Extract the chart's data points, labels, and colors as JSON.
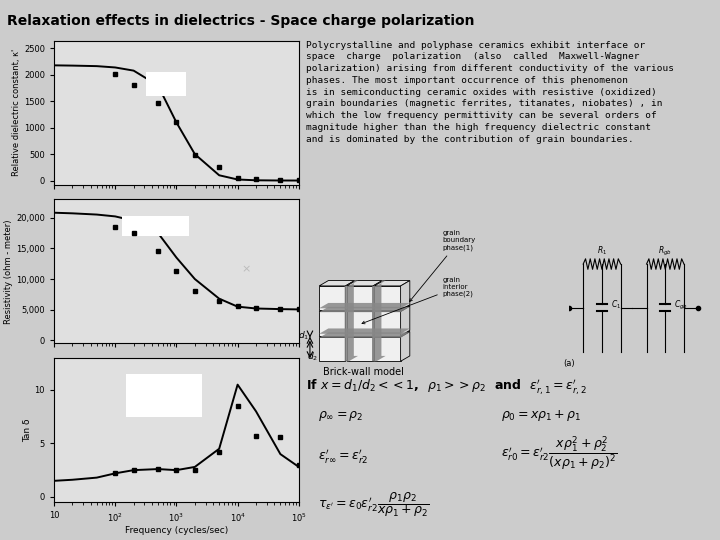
{
  "title": "Relaxation effects in dielectrics - Space charge polarization",
  "bg_color": "#cccccc",
  "plot_bg_color": "#e0e0e0",
  "description": "Polycrystalline and polyphase ceramics exhibit interface or\nspace  charge  polarization  (also  called  Maxwell-Wagner\npolarization) arising from different conductivity of the various\nphases. The most important occurrence of this phenomenon\nis in semiconducting ceramic oxides with resistive (oxidized)\ngrain boundaries (magnetic ferrites, titanates, niobates) , in\nwhich the low frequency permittivity can be several orders of\nmagnitude higher than the high frequency dielectric constant\nand is dominated by the contribution of grain boundaries.",
  "freq_curve": [
    10,
    20,
    50,
    100,
    200,
    500,
    1000,
    2000,
    5000,
    10000,
    20000,
    50000,
    100000
  ],
  "kappa_curve": [
    2180,
    2175,
    2165,
    2140,
    2080,
    1800,
    1100,
    500,
    100,
    20,
    5,
    1,
    0.5
  ],
  "kappa_data_x": [
    100,
    200,
    500,
    1000,
    2000,
    5000,
    10000,
    20000,
    50000,
    100000
  ],
  "kappa_data_y": [
    2020,
    1800,
    1470,
    1110,
    490,
    250,
    55,
    30,
    15,
    10
  ],
  "resistivity_vals": [
    20800,
    20700,
    20500,
    20200,
    19500,
    17500,
    13500,
    10000,
    6800,
    5500,
    5200,
    5100,
    5050
  ],
  "resistivity_data_x": [
    100,
    200,
    500,
    1000,
    2000,
    5000,
    10000,
    20000,
    50000,
    100000
  ],
  "resistivity_data_y": [
    18500,
    17500,
    14500,
    11300,
    8000,
    6400,
    5600,
    5200,
    5100,
    5100
  ],
  "tand_vals": [
    1.5,
    1.6,
    1.8,
    2.2,
    2.5,
    2.6,
    2.5,
    2.8,
    4.5,
    10.5,
    8.0,
    4.0,
    2.8
  ],
  "tand_data_x": [
    100,
    200,
    500,
    1000,
    2000,
    5000,
    10000,
    20000,
    50000,
    100000
  ],
  "tand_data_y": [
    2.2,
    2.5,
    2.6,
    2.5,
    2.5,
    4.2,
    8.5,
    5.7,
    5.6,
    3.0
  ]
}
